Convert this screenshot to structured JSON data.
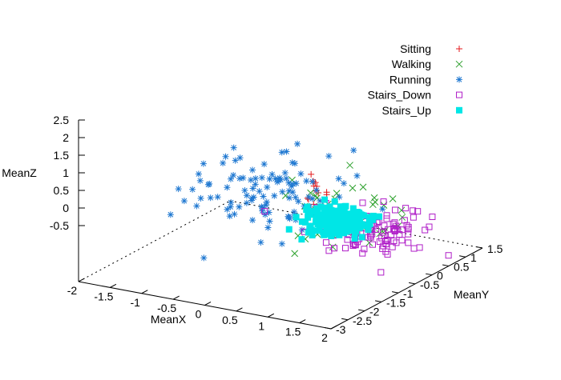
{
  "chart_data": {
    "type": "scatter3d",
    "axes": {
      "x": {
        "label": "MeanX",
        "range": [
          -2,
          2
        ],
        "ticks": [
          "-2",
          "-1.5",
          "-1",
          "-0.5",
          "0",
          "0.5",
          "1",
          "1.5",
          "2"
        ]
      },
      "y": {
        "label": "MeanY",
        "range": [
          -3,
          1.5
        ],
        "ticks": [
          "-3",
          "-2.5",
          "-2",
          "-1.5",
          "-1",
          "-0.5",
          "0",
          "0.5",
          "1",
          "1.5"
        ]
      },
      "z": {
        "label": "MeanZ",
        "range": [
          -0.5,
          2.5
        ],
        "ticks": [
          "-0.5",
          "0",
          "0.5",
          "1",
          "1.5",
          "2",
          "2.5"
        ]
      }
    },
    "legend_position": "top-right",
    "series": [
      {
        "name": "Sitting",
        "marker": "plus",
        "color": "#e41a1c"
      },
      {
        "name": "Walking",
        "marker": "cross",
        "color": "#2ca02c"
      },
      {
        "name": "Running",
        "marker": "star",
        "color": "#1f78d1"
      },
      {
        "name": "Stairs_Down",
        "marker": "open-square",
        "color": "#b01fc8"
      },
      {
        "name": "Stairs_Up",
        "marker": "filled-square",
        "color": "#00e6e6"
      }
    ],
    "clusters": [
      {
        "series": 0,
        "center": [
          0.3,
          -0.3,
          1.5
        ],
        "spread": [
          0.12,
          0.12,
          0.25
        ],
        "count": 12
      },
      {
        "series": 1,
        "center": [
          0.7,
          -0.2,
          0.9
        ],
        "spread": [
          0.45,
          0.45,
          0.45
        ],
        "count": 45
      },
      {
        "series": 2,
        "center": [
          -0.3,
          -0.5,
          1.3
        ],
        "spread": [
          0.6,
          0.6,
          0.45
        ],
        "count": 110
      },
      {
        "series": 3,
        "center": [
          1.3,
          -0.5,
          0.75
        ],
        "spread": [
          0.4,
          0.4,
          0.3
        ],
        "count": 110
      },
      {
        "series": 4,
        "center": [
          0.8,
          -0.5,
          0.9
        ],
        "spread": [
          0.22,
          0.22,
          0.15
        ],
        "count": 260
      }
    ]
  }
}
